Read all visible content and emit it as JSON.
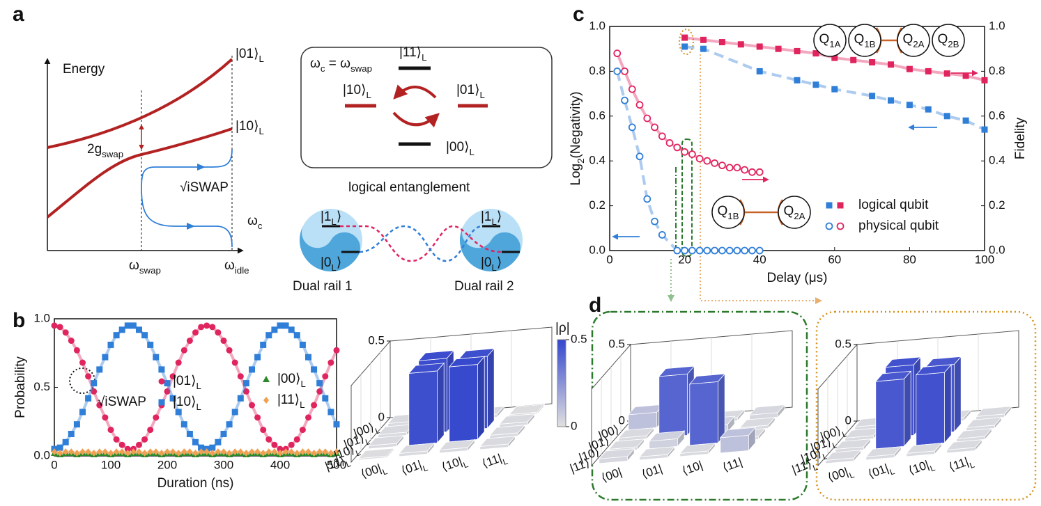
{
  "schematic": {
    "panel_labels": [
      "a",
      "b",
      "c",
      "d"
    ],
    "energy": "Energy",
    "level_01": [
      "|01⟩",
      "L"
    ],
    "level_10": [
      "|10⟩",
      "L"
    ],
    "coupling": [
      "2g",
      "swap"
    ],
    "gate": "√iSWAP",
    "omega_c": [
      "ω",
      "c"
    ],
    "omega_swap": [
      "ω",
      "swap"
    ],
    "omega_idle": [
      "ω",
      "idle"
    ],
    "resonance": [
      "ω",
      "c",
      " = ω",
      "swap"
    ],
    "box_levels": [
      [
        "|11⟩",
        "L"
      ],
      [
        "|10⟩",
        "L"
      ],
      [
        "|01⟩",
        "L"
      ],
      [
        "|00⟩",
        "L"
      ]
    ],
    "caption": "logical entanglement",
    "rail_states": [
      [
        "|1",
        "L",
        "⟩"
      ],
      [
        "|0",
        "L",
        "⟩"
      ]
    ],
    "rails": [
      "Dual rail 1",
      "Dual rail 2"
    ]
  },
  "chart_data": [
    {
      "type": "line",
      "ylabel": "Probability",
      "xlabel": "Duration (ns)",
      "xlim": [
        0,
        500
      ],
      "ylim": [
        0,
        1
      ],
      "xticks": [
        0,
        100,
        200,
        300,
        400,
        500
      ],
      "yticks": [
        {
          "value": 0,
          "label": "0.0"
        },
        {
          "value": 0.5,
          "label": "0.5"
        },
        {
          "value": 1,
          "label": "1.0"
        }
      ],
      "annotation": "√iSWAP",
      "x": [
        0,
        10,
        20,
        30,
        40,
        50,
        60,
        70,
        80,
        90,
        100,
        110,
        120,
        130,
        140,
        150,
        160,
        170,
        180,
        190,
        200,
        210,
        220,
        230,
        240,
        250,
        260,
        270,
        280,
        290,
        300,
        310,
        320,
        330,
        340,
        350,
        360,
        370,
        380,
        390,
        400,
        410,
        420,
        430,
        440,
        450,
        460,
        470,
        480,
        490,
        500
      ],
      "series": [
        {
          "name": [
            "|01⟩",
            "L"
          ],
          "color": "#e0245e",
          "marker": "circle",
          "values": [
            0.95,
            0.94,
            0.9,
            0.84,
            0.77,
            0.68,
            0.58,
            0.47,
            0.37,
            0.28,
            0.19,
            0.12,
            0.08,
            0.05,
            0.05,
            0.08,
            0.12,
            0.19,
            0.28,
            0.37,
            0.47,
            0.58,
            0.68,
            0.77,
            0.84,
            0.9,
            0.94,
            0.95,
            0.94,
            0.9,
            0.84,
            0.77,
            0.68,
            0.58,
            0.47,
            0.37,
            0.28,
            0.19,
            0.12,
            0.08,
            0.05,
            0.05,
            0.08,
            0.12,
            0.19,
            0.28,
            0.37,
            0.47,
            0.58,
            0.68,
            0.77
          ]
        },
        {
          "name": [
            "|10⟩",
            "L"
          ],
          "color": "#2f7ed8",
          "marker": "square",
          "values": [
            0.05,
            0.06,
            0.1,
            0.16,
            0.23,
            0.32,
            0.42,
            0.53,
            0.63,
            0.72,
            0.81,
            0.88,
            0.92,
            0.95,
            0.95,
            0.92,
            0.88,
            0.81,
            0.72,
            0.63,
            0.53,
            0.42,
            0.32,
            0.23,
            0.16,
            0.1,
            0.06,
            0.05,
            0.06,
            0.1,
            0.16,
            0.23,
            0.32,
            0.42,
            0.53,
            0.63,
            0.72,
            0.81,
            0.88,
            0.92,
            0.95,
            0.95,
            0.92,
            0.88,
            0.81,
            0.72,
            0.63,
            0.53,
            0.42,
            0.32,
            0.23
          ]
        },
        {
          "name": [
            "|00⟩",
            "L"
          ],
          "color": "#2a8a2a",
          "marker": "triangle",
          "values": [
            0.02,
            0.01,
            0.02,
            0.02,
            0.01,
            0.02,
            0.02,
            0.01,
            0.02,
            0.02,
            0.01,
            0.02,
            0.02,
            0.01,
            0.02,
            0.02,
            0.01,
            0.02,
            0.02,
            0.01,
            0.02,
            0.02,
            0.01,
            0.02,
            0.02,
            0.01,
            0.02,
            0.02,
            0.01,
            0.02,
            0.02,
            0.01,
            0.02,
            0.02,
            0.01,
            0.02,
            0.02,
            0.01,
            0.02,
            0.02,
            0.01,
            0.02,
            0.02,
            0.01,
            0.02,
            0.02,
            0.01,
            0.02,
            0.02,
            0.01,
            0.02
          ]
        },
        {
          "name": [
            "|11⟩",
            "L"
          ],
          "color": "#f0a050",
          "marker": "diamond",
          "values": [
            0.03,
            0.02,
            0.03,
            0.03,
            0.02,
            0.03,
            0.03,
            0.02,
            0.03,
            0.03,
            0.02,
            0.03,
            0.03,
            0.02,
            0.03,
            0.03,
            0.02,
            0.03,
            0.03,
            0.02,
            0.03,
            0.03,
            0.02,
            0.03,
            0.03,
            0.02,
            0.03,
            0.03,
            0.02,
            0.03,
            0.03,
            0.02,
            0.03,
            0.03,
            0.02,
            0.03,
            0.03,
            0.02,
            0.03,
            0.03,
            0.02,
            0.03,
            0.03,
            0.02,
            0.03,
            0.03,
            0.02,
            0.03,
            0.03,
            0.02,
            0.03
          ]
        }
      ]
    },
    {
      "type": "scatter",
      "ylabel": [
        "Log",
        "2",
        "(Negativity)"
      ],
      "y2label": "Fidelity",
      "xlabel": "Delay (μs)",
      "xlim": [
        0,
        100
      ],
      "ylim": [
        0,
        1
      ],
      "y2lim": [
        0,
        1
      ],
      "xticks": [
        0,
        20,
        40,
        60,
        80,
        100
      ],
      "yticks": [
        {
          "value": 0,
          "label": "0.0"
        },
        0.2,
        0.4,
        0.6,
        0.8,
        {
          "value": 1,
          "label": "1.0"
        }
      ],
      "y2ticks": [
        {
          "value": 0,
          "label": "0.0"
        },
        0.2,
        0.4,
        0.6,
        0.8,
        {
          "value": 1,
          "label": "1.0"
        }
      ],
      "legend": [
        "logical qubit",
        "physical qubit"
      ],
      "qubits_logical": [
        [
          "Q",
          "1A"
        ],
        [
          "Q",
          "1B"
        ],
        [
          "Q",
          "2A"
        ],
        [
          "Q",
          "2B"
        ]
      ],
      "qubits_physical": [
        [
          "Q",
          "1B"
        ],
        [
          "Q",
          "2A"
        ]
      ],
      "series": [
        {
          "color": "#2f7ed8",
          "marker": "square",
          "line_style": "dashed",
          "x": [
            20,
            25,
            40,
            50,
            55,
            60,
            70,
            75,
            80,
            85,
            90,
            95,
            100
          ],
          "values": [
            0.91,
            0.9,
            0.8,
            0.76,
            0.74,
            0.72,
            0.69,
            0.67,
            0.65,
            0.63,
            0.6,
            0.58,
            0.54
          ]
        },
        {
          "color": "#e0245e",
          "marker": "square",
          "axis": "y2",
          "line_style": "solid",
          "x": [
            20,
            25,
            30,
            35,
            40,
            45,
            50,
            55,
            60,
            65,
            70,
            75,
            80,
            85,
            90,
            95,
            100
          ],
          "values": [
            0.95,
            0.94,
            0.93,
            0.92,
            0.91,
            0.9,
            0.89,
            0.88,
            0.86,
            0.85,
            0.84,
            0.83,
            0.81,
            0.8,
            0.79,
            0.78,
            0.76
          ]
        },
        {
          "color": "#2f7ed8",
          "marker": "open-circle",
          "line_style": "dashed",
          "x": [
            2,
            4,
            6,
            8,
            10,
            12,
            14,
            18,
            20,
            22,
            24,
            26,
            28,
            30,
            32,
            34,
            36,
            38,
            40
          ],
          "values": [
            0.8,
            0.67,
            0.55,
            0.42,
            0.23,
            0.13,
            0.07,
            0,
            0,
            0,
            0,
            0,
            0,
            0,
            0,
            0,
            0,
            0,
            0
          ]
        },
        {
          "color": "#e0245e",
          "marker": "open-circle",
          "axis": "y2",
          "line_style": "solid",
          "x": [
            2,
            4,
            6,
            8,
            10,
            12,
            14,
            16,
            18,
            20,
            22,
            24,
            26,
            28,
            30,
            32,
            34,
            36,
            38,
            40
          ],
          "values": [
            0.88,
            0.8,
            0.72,
            0.65,
            0.59,
            0.55,
            0.51,
            0.48,
            0.46,
            0.44,
            0.43,
            0.41,
            0.4,
            0.39,
            0.38,
            0.37,
            0.37,
            0.36,
            0.35,
            0.35
          ]
        }
      ]
    },
    {
      "type": "bar3d",
      "zlim": [
        0,
        0.5
      ],
      "zticks": [
        0,
        0.5
      ],
      "colorbar": {
        "label": "|ρ|",
        "ticks": [
          0,
          0.5
        ]
      },
      "rows": [
        [
          "|00⟩",
          "L"
        ],
        [
          "|01⟩",
          "L"
        ],
        [
          "|10⟩",
          "L"
        ],
        [
          "|11⟩",
          "L"
        ]
      ],
      "columns": [
        [
          "⟨00|",
          "L"
        ],
        [
          "⟨01|",
          "L"
        ],
        [
          "⟨10|",
          "L"
        ],
        [
          "⟨11|",
          "L"
        ]
      ],
      "values": [
        [
          0.02,
          0.02,
          0.02,
          0.01
        ],
        [
          0.02,
          0.48,
          0.47,
          0.02
        ],
        [
          0.02,
          0.47,
          0.49,
          0.02
        ],
        [
          0.01,
          0.02,
          0.02,
          0.02
        ]
      ]
    },
    {
      "type": "bar3d",
      "zlim": [
        0,
        0.5
      ],
      "zticks": [
        0,
        0.5
      ],
      "rows": [
        "|00⟩",
        "|01⟩",
        "|10⟩",
        "|11⟩"
      ],
      "columns": [
        "⟨00|",
        "⟨01|",
        "⟨10|",
        "⟨11|"
      ],
      "values": [
        [
          0.1,
          0.02,
          0.02,
          0.03
        ],
        [
          0.02,
          0.4,
          0.05,
          0.02
        ],
        [
          0.02,
          0.05,
          0.4,
          0.02
        ],
        [
          0.03,
          0.02,
          0.02,
          0.1
        ]
      ]
    },
    {
      "type": "bar3d",
      "zlim": [
        0,
        0.5
      ],
      "zticks": [
        0,
        0.5
      ],
      "rows": [
        [
          "|00⟩",
          "L"
        ],
        [
          "|01⟩",
          "L"
        ],
        [
          "|10⟩",
          "L"
        ],
        [
          "|11⟩",
          "L"
        ]
      ],
      "columns": [
        [
          "⟨00|",
          "L"
        ],
        [
          "⟨01|",
          "L"
        ],
        [
          "⟨10|",
          "L"
        ],
        [
          "⟨11|",
          "L"
        ]
      ],
      "values": [
        [
          0.02,
          0.02,
          0.02,
          0.02
        ],
        [
          0.02,
          0.46,
          0.44,
          0.02
        ],
        [
          0.02,
          0.44,
          0.46,
          0.02
        ],
        [
          0.02,
          0.02,
          0.02,
          0.02
        ]
      ]
    }
  ]
}
